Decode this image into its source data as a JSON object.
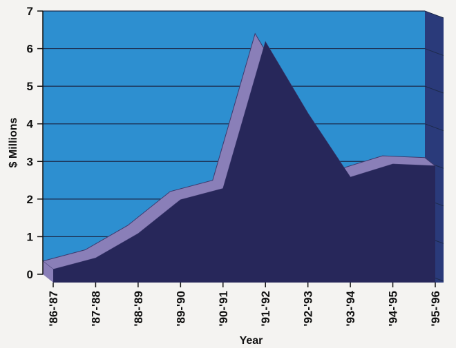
{
  "chart_data": {
    "type": "area",
    "title": "",
    "xlabel": "Year",
    "ylabel": "$ Millions",
    "ylim": [
      0,
      7
    ],
    "yticks": [
      "0",
      "1",
      "2",
      "3",
      "4",
      "5",
      "6",
      "7"
    ],
    "categories": [
      "'86-'87",
      "'87-'88",
      "'88-'89",
      "'89-'90",
      "'90-'91",
      "'91-'92",
      "'92-'93",
      "'93-'94",
      "'94-'95",
      "'95-'96"
    ],
    "values": [
      0.35,
      0.65,
      1.3,
      2.2,
      2.5,
      6.4,
      4.5,
      2.8,
      3.15,
      3.1
    ],
    "grid": true,
    "legend": "none",
    "colors": {
      "background": "#2d8fd0",
      "area_front": "#27275a",
      "area_top": "#8a7fb8",
      "grid": "#1d2a4a",
      "side_wall": "#2a3a7a"
    }
  }
}
